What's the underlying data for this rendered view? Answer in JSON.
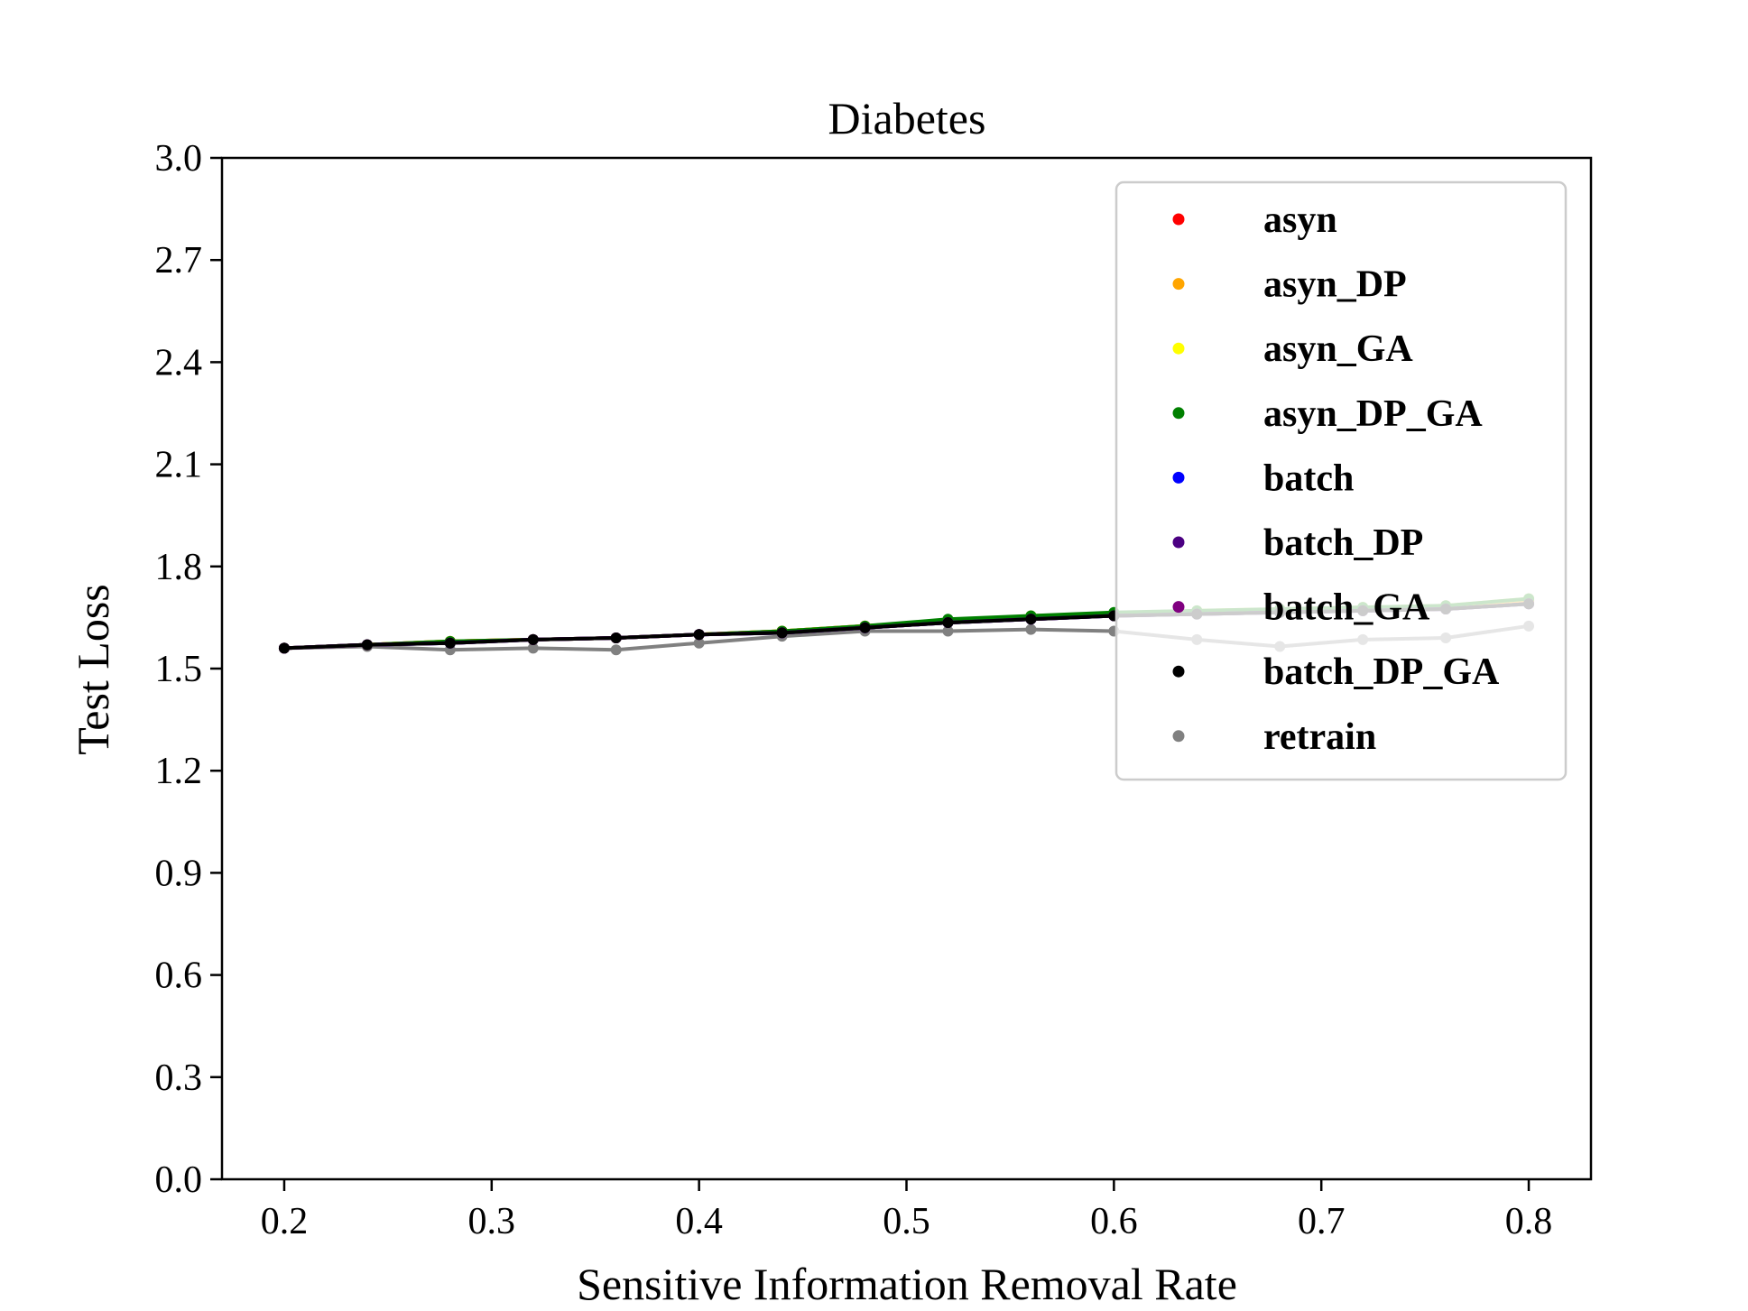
{
  "chart_data": {
    "type": "line",
    "title": "Diabetes",
    "xlabel": "Sensitive Information Removal Rate",
    "ylabel": "Test Loss",
    "xlim": [
      0.17,
      0.83
    ],
    "ylim": [
      0.0,
      3.0
    ],
    "xticks": [
      "0.2",
      "0.3",
      "0.4",
      "0.5",
      "0.6",
      "0.7",
      "0.8"
    ],
    "yticks": [
      "0.0",
      "0.3",
      "0.6",
      "0.9",
      "1.2",
      "1.5",
      "1.8",
      "2.1",
      "2.4",
      "2.7",
      "3.0"
    ],
    "grid": false,
    "legend_position": "top-right",
    "x": [
      0.2,
      0.24,
      0.28,
      0.32,
      0.36,
      0.4,
      0.44,
      0.48,
      0.52,
      0.56,
      0.6,
      0.64,
      0.68,
      0.72,
      0.76,
      0.8
    ],
    "series": [
      {
        "name": "asyn",
        "color": "#ff0000",
        "values": [
          1.56,
          1.57,
          1.58,
          1.585,
          1.59,
          1.6,
          1.61,
          1.625,
          1.64,
          1.65,
          1.66,
          1.665,
          1.67,
          1.675,
          1.68,
          1.7
        ]
      },
      {
        "name": "asyn_DP",
        "color": "#ffa500",
        "values": [
          1.56,
          1.57,
          1.58,
          1.585,
          1.59,
          1.6,
          1.61,
          1.625,
          1.64,
          1.65,
          1.66,
          1.665,
          1.67,
          1.675,
          1.68,
          1.7
        ]
      },
      {
        "name": "asyn_GA",
        "color": "#ffff00",
        "values": [
          1.56,
          1.57,
          1.58,
          1.585,
          1.59,
          1.6,
          1.61,
          1.625,
          1.64,
          1.655,
          1.66,
          1.67,
          1.675,
          1.68,
          1.685,
          1.705
        ]
      },
      {
        "name": "asyn_DP_GA",
        "color": "#008000",
        "values": [
          1.56,
          1.57,
          1.58,
          1.585,
          1.59,
          1.6,
          1.61,
          1.625,
          1.645,
          1.655,
          1.665,
          1.67,
          1.675,
          1.68,
          1.685,
          1.705
        ]
      },
      {
        "name": "batch",
        "color": "#0000ff",
        "values": [
          1.56,
          1.57,
          1.575,
          1.585,
          1.59,
          1.6,
          1.605,
          1.62,
          1.635,
          1.645,
          1.655,
          1.66,
          1.665,
          1.67,
          1.675,
          1.69
        ]
      },
      {
        "name": "batch_DP",
        "color": "#4b0082",
        "values": [
          1.56,
          1.57,
          1.575,
          1.585,
          1.59,
          1.6,
          1.605,
          1.62,
          1.635,
          1.645,
          1.655,
          1.66,
          1.665,
          1.67,
          1.675,
          1.69
        ]
      },
      {
        "name": "batch_GA",
        "color": "#800080",
        "values": [
          1.56,
          1.57,
          1.575,
          1.585,
          1.59,
          1.6,
          1.605,
          1.62,
          1.635,
          1.645,
          1.655,
          1.66,
          1.665,
          1.67,
          1.675,
          1.69
        ]
      },
      {
        "name": "batch_DP_GA",
        "color": "#000000",
        "values": [
          1.56,
          1.57,
          1.575,
          1.585,
          1.59,
          1.6,
          1.605,
          1.62,
          1.635,
          1.645,
          1.655,
          1.66,
          1.665,
          1.67,
          1.675,
          1.69
        ]
      },
      {
        "name": "retrain",
        "color": "#808080",
        "values": [
          1.56,
          1.565,
          1.555,
          1.56,
          1.555,
          1.575,
          1.595,
          1.61,
          1.61,
          1.615,
          1.61,
          1.585,
          1.565,
          1.585,
          1.59,
          1.625
        ]
      }
    ]
  }
}
